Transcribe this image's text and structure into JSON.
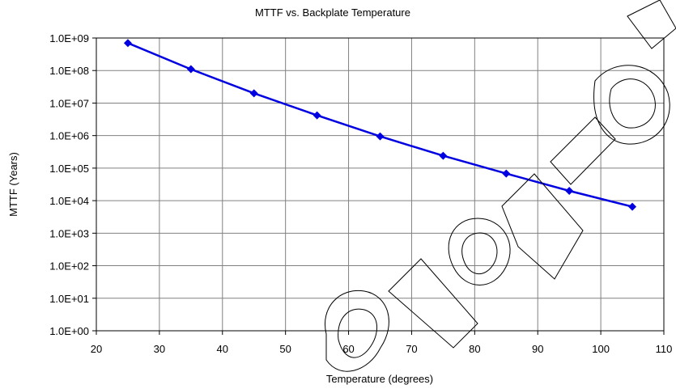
{
  "chart_data": {
    "type": "line",
    "title": "MTTF vs. Backplate Temperature",
    "xlabel": "Temperature (degrees)",
    "ylabel": "MTTF (Years)",
    "xlim": [
      20,
      110
    ],
    "x_ticks": [
      20,
      30,
      40,
      50,
      60,
      70,
      80,
      90,
      100,
      110
    ],
    "x_tick_labels": [
      "20",
      "30",
      "40",
      "50",
      "60",
      "70",
      "80",
      "90",
      "100",
      "110"
    ],
    "y_scale": "log",
    "ylim": [
      1,
      1000000000
    ],
    "y_ticks": [
      1,
      10,
      100,
      1000,
      10000,
      100000,
      1000000,
      10000000,
      100000000,
      1000000000
    ],
    "y_tick_labels": [
      "1.0E+00",
      "1.0E+01",
      "1.0E+02",
      "1.0E+03",
      "1.0E+04",
      "1.0E+05",
      "1.0E+06",
      "1.0E+07",
      "1.0E+08",
      "1.0E+09"
    ],
    "grid": true,
    "legend": "none",
    "series": [
      {
        "color": "#0000e0",
        "marker": "diamond",
        "x": [
          25,
          35,
          45,
          55,
          65,
          75,
          85,
          95,
          105
        ],
        "y": [
          700000000,
          110000000,
          20000000,
          4200000,
          950000,
          240000,
          68000,
          20000,
          6500
        ]
      }
    ]
  }
}
